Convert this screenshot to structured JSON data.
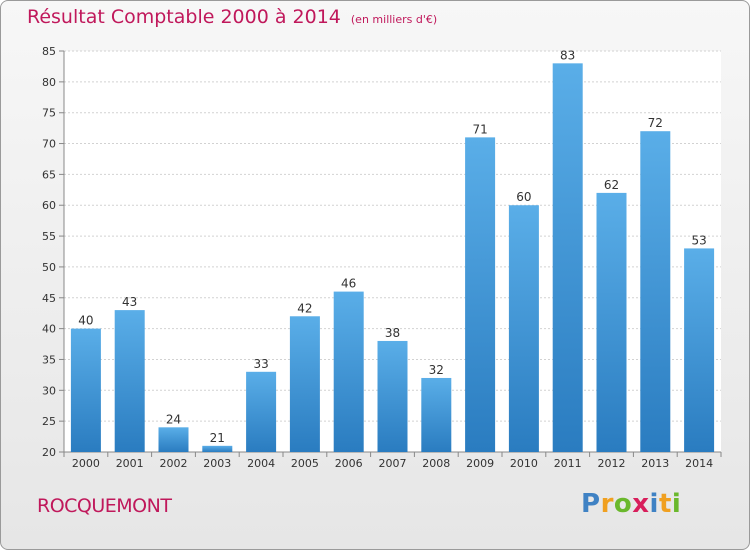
{
  "title": "Résultat Comptable 2000 à 2014",
  "unit_note": "(en milliers d'€)",
  "commune": "ROCQUEMONT",
  "brand": {
    "letters": [
      "P",
      "r",
      "o",
      "x",
      "i",
      "t",
      "i"
    ],
    "colors": [
      "#3f82c4",
      "#f0a020",
      "#6ab82c",
      "#d81e5b",
      "#3f82c4",
      "#f0a020",
      "#6ab82c"
    ]
  },
  "colors": {
    "bar": "#3b91d6",
    "title": "#c0185b"
  },
  "chart_data": {
    "type": "bar",
    "categories": [
      "2000",
      "2001",
      "2002",
      "2003",
      "2004",
      "2005",
      "2006",
      "2007",
      "2008",
      "2009",
      "2010",
      "2011",
      "2012",
      "2013",
      "2014"
    ],
    "values": [
      40,
      43,
      24,
      21,
      33,
      42,
      46,
      38,
      32,
      71,
      60,
      83,
      62,
      72,
      53
    ],
    "ylim": [
      20,
      85
    ],
    "yticks": [
      20,
      25,
      30,
      35,
      40,
      45,
      50,
      55,
      60,
      65,
      70,
      75,
      80,
      85
    ],
    "grid": true,
    "data_labels": true
  }
}
